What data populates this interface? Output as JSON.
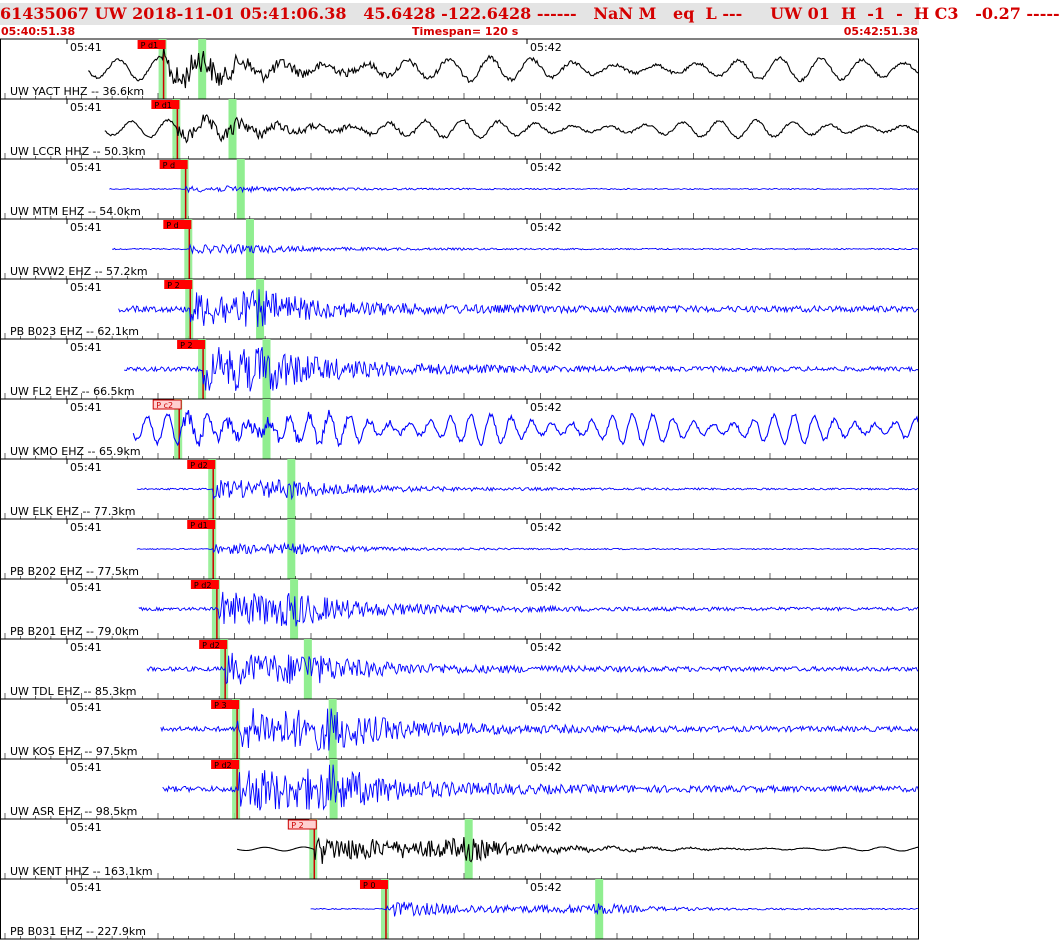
{
  "header": {
    "title": "61435067 UW 2018-11-01 05:41:06.38   45.6428 -122.6428 ------   NaN M   eq  L ---     UW 01  H  -1  -  H C3   -0.27 -----",
    "start_time": "05:40:51.38",
    "timespan": "Timespan= 120 s",
    "end_time": "05:42:51.38"
  },
  "traces": [
    {
      "label": "UW YACT HHZ -- 36.6km",
      "start": 0.096,
      "pick": "P d1",
      "pick_style": "solid",
      "p": 0.178,
      "s": 0.22,
      "amp": 0.48,
      "noise": 0.28,
      "period": 0.045,
      "color": "#000000",
      "lowfreq": true
    },
    {
      "label": "UW LCCR HHZ -- 50.3km",
      "start": 0.114,
      "pick": "P d1",
      "pick_style": "solid",
      "p": 0.193,
      "s": 0.253,
      "amp": 0.28,
      "noise": 0.2,
      "period": 0.04,
      "color": "#000000",
      "lowfreq": true
    },
    {
      "label": "UW MTM EHZ -- 54.0km",
      "start": 0.119,
      "pick": "P d",
      "pick_style": "solid",
      "p": 0.202,
      "s": 0.262,
      "amp": 0.06,
      "noise": 0.05,
      "period": 0.0,
      "color": "#0000ff",
      "lowfreq": false
    },
    {
      "label": "UW RVW2 EHZ -- 57.2km",
      "start": 0.122,
      "pick": "P d",
      "pick_style": "solid",
      "p": 0.206,
      "s": 0.272,
      "amp": 0.09,
      "noise": 0.06,
      "period": 0.0,
      "color": "#0000ff",
      "lowfreq": false
    },
    {
      "label": "PB B023 EHZ -- 62.1km",
      "start": 0.129,
      "pick": "P 2",
      "pick_style": "solid",
      "p": 0.207,
      "s": 0.283,
      "amp": 0.38,
      "noise": 0.3,
      "period": 0.0,
      "color": "#0000ff",
      "lowfreq": false
    },
    {
      "label": "UW FL2 EHZ -- 66.5km",
      "start": 0.135,
      "pick": "P 2",
      "pick_style": "solid",
      "p": 0.221,
      "s": 0.29,
      "amp": 0.5,
      "noise": 0.22,
      "period": 0.0,
      "color": "#0000ff",
      "lowfreq": false
    },
    {
      "label": "UW KMO EHZ -- 65.9km",
      "start": 0.145,
      "pick": "P c2",
      "pick_style": "outline",
      "p": 0.195,
      "s": 0.29,
      "amp": 0.3,
      "noise": 0.38,
      "period": 0.022,
      "color": "#0000ff",
      "lowfreq": true
    },
    {
      "label": "UW ELK EHZ -- 77.3km",
      "start": 0.149,
      "pick": "P d2",
      "pick_style": "solid",
      "p": 0.232,
      "s": 0.317,
      "amp": 0.22,
      "noise": 0.08,
      "period": 0.0,
      "color": "#0000ff",
      "lowfreq": false
    },
    {
      "label": "PB B202 EHZ -- 77.5km",
      "start": 0.149,
      "pick": "P d1",
      "pick_style": "solid",
      "p": 0.232,
      "s": 0.317,
      "amp": 0.12,
      "noise": 0.05,
      "period": 0.0,
      "color": "#0000ff",
      "lowfreq": false
    },
    {
      "label": "PB B201 EHZ -- 79.0km",
      "start": 0.151,
      "pick": "P d2",
      "pick_style": "solid",
      "p": 0.236,
      "s": 0.32,
      "amp": 0.4,
      "noise": 0.16,
      "period": 0.0,
      "color": "#0000ff",
      "lowfreq": false
    },
    {
      "label": "UW TDL EHZ -- 85.3km",
      "start": 0.16,
      "pick": "P d2",
      "pick_style": "solid",
      "p": 0.245,
      "s": 0.335,
      "amp": 0.36,
      "noise": 0.22,
      "period": 0.0,
      "color": "#0000ff",
      "lowfreq": false
    },
    {
      "label": "UW KOS EHZ -- 97.5km",
      "start": 0.175,
      "pick": "P 3",
      "pick_style": "solid",
      "p": 0.258,
      "s": 0.362,
      "amp": 0.52,
      "noise": 0.25,
      "period": 0.0,
      "color": "#0000ff",
      "lowfreq": false
    },
    {
      "label": "UW ASR EHZ -- 98.5km",
      "start": 0.177,
      "pick": "P d2",
      "pick_style": "solid",
      "p": 0.258,
      "s": 0.363,
      "amp": 0.55,
      "noise": 0.28,
      "period": 0.0,
      "color": "#0000ff",
      "lowfreq": false
    },
    {
      "label": "UW KENT HHZ -- 163.1km",
      "start": 0.258,
      "pick": "P 2",
      "pick_style": "outline",
      "p": 0.342,
      "s": 0.51,
      "amp": 0.75,
      "noise": 0.0,
      "period": 0.042,
      "color": "#000000",
      "lowfreq": true
    },
    {
      "label": "PB B031 EHZ -- 227.9km",
      "start": 0.338,
      "pick": "P 0",
      "pick_style": "solid",
      "p": 0.42,
      "s": 0.652,
      "amp": 0.2,
      "noise": 0.05,
      "period": 0.0,
      "color": "#0000ff",
      "lowfreq": false
    }
  ],
  "time_ticks": {
    "t1": "05:41",
    "t2": "05:42"
  },
  "colors": {
    "title": "#d40000",
    "pick_fill": "#ff0000",
    "pick_outline": "#ffd0d0",
    "s_phase": "#90ee90",
    "trace_blue": "#0000ff",
    "trace_black": "#000000"
  }
}
